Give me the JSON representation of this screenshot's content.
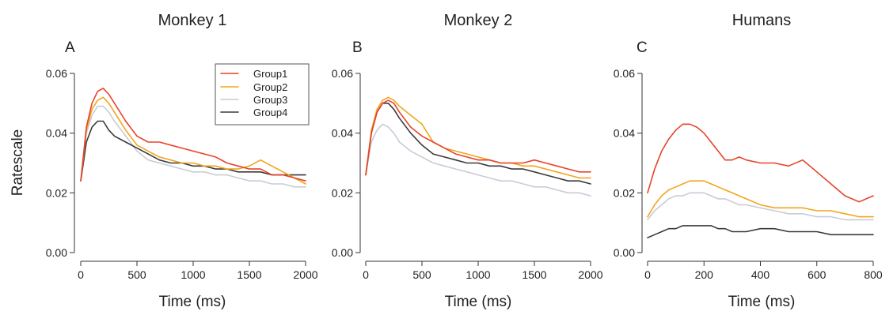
{
  "figure": {
    "shared_ylabel": "Ratescale"
  },
  "legend": {
    "entries": [
      "Group1",
      "Group2",
      "Group3",
      "Group4"
    ]
  },
  "colors": {
    "Group1": "#e8432a",
    "Group2": "#f2a51d",
    "Group3": "#c9ccd6",
    "Group4": "#3a3a3a"
  },
  "chart_data": [
    {
      "type": "line",
      "title": "Monkey 1",
      "panel_letter": "A",
      "xlabel": "Time (ms)",
      "ylabel": "Ratescale",
      "xlim": [
        0,
        2000
      ],
      "ylim": [
        0,
        0.06
      ],
      "xticks": [
        0,
        500,
        1000,
        1500,
        2000
      ],
      "xtick_labels": [
        "0",
        "500",
        "1000",
        "1500",
        "2000"
      ],
      "yticks": [
        0,
        0.02,
        0.04,
        0.06
      ],
      "ytick_labels": [
        "0.00",
        "0.02",
        "0.04",
        "0.06"
      ],
      "legend_position": "top-right",
      "series": [
        {
          "name": "Group1",
          "x": [
            0,
            50,
            100,
            150,
            200,
            250,
            300,
            400,
            500,
            600,
            700,
            800,
            900,
            1000,
            1100,
            1200,
            1300,
            1400,
            1500,
            1600,
            1700,
            1800,
            1900,
            2000
          ],
          "y": [
            0.024,
            0.042,
            0.05,
            0.054,
            0.055,
            0.053,
            0.05,
            0.044,
            0.039,
            0.037,
            0.037,
            0.036,
            0.035,
            0.034,
            0.033,
            0.032,
            0.03,
            0.029,
            0.028,
            0.028,
            0.026,
            0.026,
            0.025,
            0.024
          ]
        },
        {
          "name": "Group2",
          "x": [
            0,
            50,
            100,
            150,
            200,
            250,
            300,
            400,
            500,
            600,
            700,
            800,
            900,
            1000,
            1100,
            1200,
            1300,
            1400,
            1500,
            1600,
            1700,
            1800,
            1900,
            2000
          ],
          "y": [
            0.024,
            0.041,
            0.048,
            0.051,
            0.052,
            0.05,
            0.047,
            0.041,
            0.036,
            0.034,
            0.032,
            0.031,
            0.03,
            0.03,
            0.029,
            0.029,
            0.028,
            0.028,
            0.029,
            0.031,
            0.029,
            0.027,
            0.025,
            0.023
          ]
        },
        {
          "name": "Group3",
          "x": [
            0,
            50,
            100,
            150,
            200,
            250,
            300,
            400,
            500,
            600,
            700,
            800,
            900,
            1000,
            1100,
            1200,
            1300,
            1400,
            1500,
            1600,
            1700,
            1800,
            1900,
            2000
          ],
          "y": [
            0.024,
            0.04,
            0.046,
            0.049,
            0.049,
            0.047,
            0.044,
            0.039,
            0.034,
            0.031,
            0.03,
            0.029,
            0.028,
            0.027,
            0.027,
            0.026,
            0.026,
            0.025,
            0.024,
            0.024,
            0.023,
            0.023,
            0.022,
            0.022
          ]
        },
        {
          "name": "Group4",
          "x": [
            0,
            50,
            100,
            150,
            200,
            250,
            300,
            400,
            500,
            600,
            700,
            800,
            900,
            1000,
            1100,
            1200,
            1300,
            1400,
            1500,
            1600,
            1700,
            1800,
            1900,
            2000
          ],
          "y": [
            0.024,
            0.037,
            0.042,
            0.044,
            0.044,
            0.041,
            0.039,
            0.037,
            0.035,
            0.033,
            0.031,
            0.03,
            0.03,
            0.029,
            0.029,
            0.028,
            0.028,
            0.027,
            0.027,
            0.027,
            0.026,
            0.026,
            0.026,
            0.026
          ]
        }
      ]
    },
    {
      "type": "line",
      "title": "Monkey 2",
      "panel_letter": "B",
      "xlabel": "Time (ms)",
      "ylabel": "",
      "xlim": [
        0,
        2000
      ],
      "ylim": [
        0,
        0.06
      ],
      "xticks": [
        0,
        500,
        1000,
        1500,
        2000
      ],
      "xtick_labels": [
        "0",
        "500",
        "1000",
        "1500",
        "2000"
      ],
      "yticks": [
        0,
        0.02,
        0.04,
        0.06
      ],
      "ytick_labels": [
        "0.00",
        "0.02",
        "0.04",
        "0.06"
      ],
      "series": [
        {
          "name": "Group1",
          "x": [
            0,
            50,
            100,
            150,
            200,
            250,
            300,
            400,
            500,
            600,
            700,
            800,
            900,
            1000,
            1100,
            1200,
            1300,
            1400,
            1500,
            1600,
            1700,
            1800,
            1900,
            2000
          ],
          "y": [
            0.026,
            0.04,
            0.047,
            0.05,
            0.051,
            0.05,
            0.047,
            0.042,
            0.039,
            0.037,
            0.035,
            0.033,
            0.032,
            0.031,
            0.031,
            0.03,
            0.03,
            0.03,
            0.031,
            0.03,
            0.029,
            0.028,
            0.027,
            0.027
          ]
        },
        {
          "name": "Group2",
          "x": [
            0,
            50,
            100,
            150,
            200,
            250,
            300,
            400,
            500,
            600,
            700,
            800,
            900,
            1000,
            1100,
            1200,
            1300,
            1400,
            1500,
            1600,
            1700,
            1800,
            1900,
            2000
          ],
          "y": [
            0.026,
            0.041,
            0.048,
            0.051,
            0.052,
            0.051,
            0.049,
            0.046,
            0.043,
            0.037,
            0.035,
            0.034,
            0.033,
            0.032,
            0.031,
            0.03,
            0.03,
            0.029,
            0.029,
            0.028,
            0.027,
            0.026,
            0.025,
            0.025
          ]
        },
        {
          "name": "Group3",
          "x": [
            0,
            50,
            100,
            150,
            200,
            250,
            300,
            400,
            500,
            600,
            700,
            800,
            900,
            1000,
            1100,
            1200,
            1300,
            1400,
            1500,
            1600,
            1700,
            1800,
            1900,
            2000
          ],
          "y": [
            0.026,
            0.037,
            0.041,
            0.043,
            0.042,
            0.04,
            0.037,
            0.034,
            0.032,
            0.03,
            0.029,
            0.028,
            0.027,
            0.026,
            0.025,
            0.024,
            0.024,
            0.023,
            0.022,
            0.022,
            0.021,
            0.02,
            0.02,
            0.019
          ]
        },
        {
          "name": "Group4",
          "x": [
            0,
            50,
            100,
            150,
            200,
            250,
            300,
            400,
            500,
            600,
            700,
            800,
            900,
            1000,
            1100,
            1200,
            1300,
            1400,
            1500,
            1600,
            1700,
            1800,
            1900,
            2000
          ],
          "y": [
            0.026,
            0.04,
            0.047,
            0.05,
            0.05,
            0.048,
            0.045,
            0.04,
            0.036,
            0.033,
            0.032,
            0.031,
            0.03,
            0.03,
            0.029,
            0.029,
            0.028,
            0.028,
            0.027,
            0.026,
            0.025,
            0.024,
            0.024,
            0.023
          ]
        }
      ]
    },
    {
      "type": "line",
      "title": "Humans",
      "panel_letter": "C",
      "xlabel": "Time (ms)",
      "ylabel": "",
      "xlim": [
        0,
        800
      ],
      "ylim": [
        0,
        0.06
      ],
      "xticks": [
        0,
        200,
        400,
        600,
        800
      ],
      "xtick_labels": [
        "0",
        "200",
        "400",
        "600",
        "800"
      ],
      "yticks": [
        0,
        0.02,
        0.04,
        0.06
      ],
      "ytick_labels": [
        "0.00",
        "0.02",
        "0.04",
        "0.06"
      ],
      "series": [
        {
          "name": "Group1",
          "x": [
            0,
            25,
            50,
            75,
            100,
            125,
            150,
            175,
            200,
            225,
            250,
            275,
            300,
            325,
            350,
            400,
            450,
            500,
            550,
            600,
            650,
            700,
            750,
            800
          ],
          "y": [
            0.02,
            0.028,
            0.034,
            0.038,
            0.041,
            0.043,
            0.043,
            0.042,
            0.04,
            0.037,
            0.034,
            0.031,
            0.031,
            0.032,
            0.031,
            0.03,
            0.03,
            0.029,
            0.031,
            0.027,
            0.023,
            0.019,
            0.017,
            0.019
          ]
        },
        {
          "name": "Group2",
          "x": [
            0,
            25,
            50,
            75,
            100,
            125,
            150,
            175,
            200,
            225,
            250,
            275,
            300,
            325,
            350,
            400,
            450,
            500,
            550,
            600,
            650,
            700,
            750,
            800
          ],
          "y": [
            0.012,
            0.016,
            0.019,
            0.021,
            0.022,
            0.023,
            0.024,
            0.024,
            0.024,
            0.023,
            0.022,
            0.021,
            0.02,
            0.019,
            0.018,
            0.016,
            0.015,
            0.015,
            0.015,
            0.014,
            0.014,
            0.013,
            0.012,
            0.012
          ]
        },
        {
          "name": "Group3",
          "x": [
            0,
            25,
            50,
            75,
            100,
            125,
            150,
            175,
            200,
            225,
            250,
            275,
            300,
            325,
            350,
            400,
            450,
            500,
            550,
            600,
            650,
            700,
            750,
            800
          ],
          "y": [
            0.011,
            0.014,
            0.016,
            0.018,
            0.019,
            0.019,
            0.02,
            0.02,
            0.02,
            0.019,
            0.018,
            0.018,
            0.017,
            0.016,
            0.016,
            0.015,
            0.014,
            0.013,
            0.013,
            0.012,
            0.012,
            0.011,
            0.011,
            0.011
          ]
        },
        {
          "name": "Group4",
          "x": [
            0,
            25,
            50,
            75,
            100,
            125,
            150,
            175,
            200,
            225,
            250,
            275,
            300,
            325,
            350,
            400,
            450,
            500,
            550,
            600,
            650,
            700,
            750,
            800
          ],
          "y": [
            0.005,
            0.006,
            0.007,
            0.008,
            0.008,
            0.009,
            0.009,
            0.009,
            0.009,
            0.009,
            0.008,
            0.008,
            0.007,
            0.007,
            0.007,
            0.008,
            0.008,
            0.007,
            0.007,
            0.007,
            0.006,
            0.006,
            0.006,
            0.006
          ]
        }
      ]
    }
  ]
}
